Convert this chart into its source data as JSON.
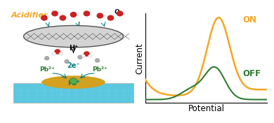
{
  "graph_bg": "#ffffff",
  "orange_color": "#f5a623",
  "green_color": "#2e7d32",
  "green_light": "#4caf50",
  "on_label": "ON",
  "off_label": "OFF",
  "xlabel": "Potential",
  "ylabel": "Current",
  "title_text": "Acidifier",
  "title_color": "#f5a623",
  "o2_label": "O₂",
  "h_label": "H⁺",
  "pb2_label": "Pb²⁺",
  "pb0_label": "Pb°",
  "e_label": "2e⁻",
  "teal_color": "#008080",
  "blue_color": "#5bc8e0",
  "gold_color": "#d4a020",
  "red_color": "#cc2222",
  "gray_color": "#999999",
  "dark_gray": "#555555"
}
